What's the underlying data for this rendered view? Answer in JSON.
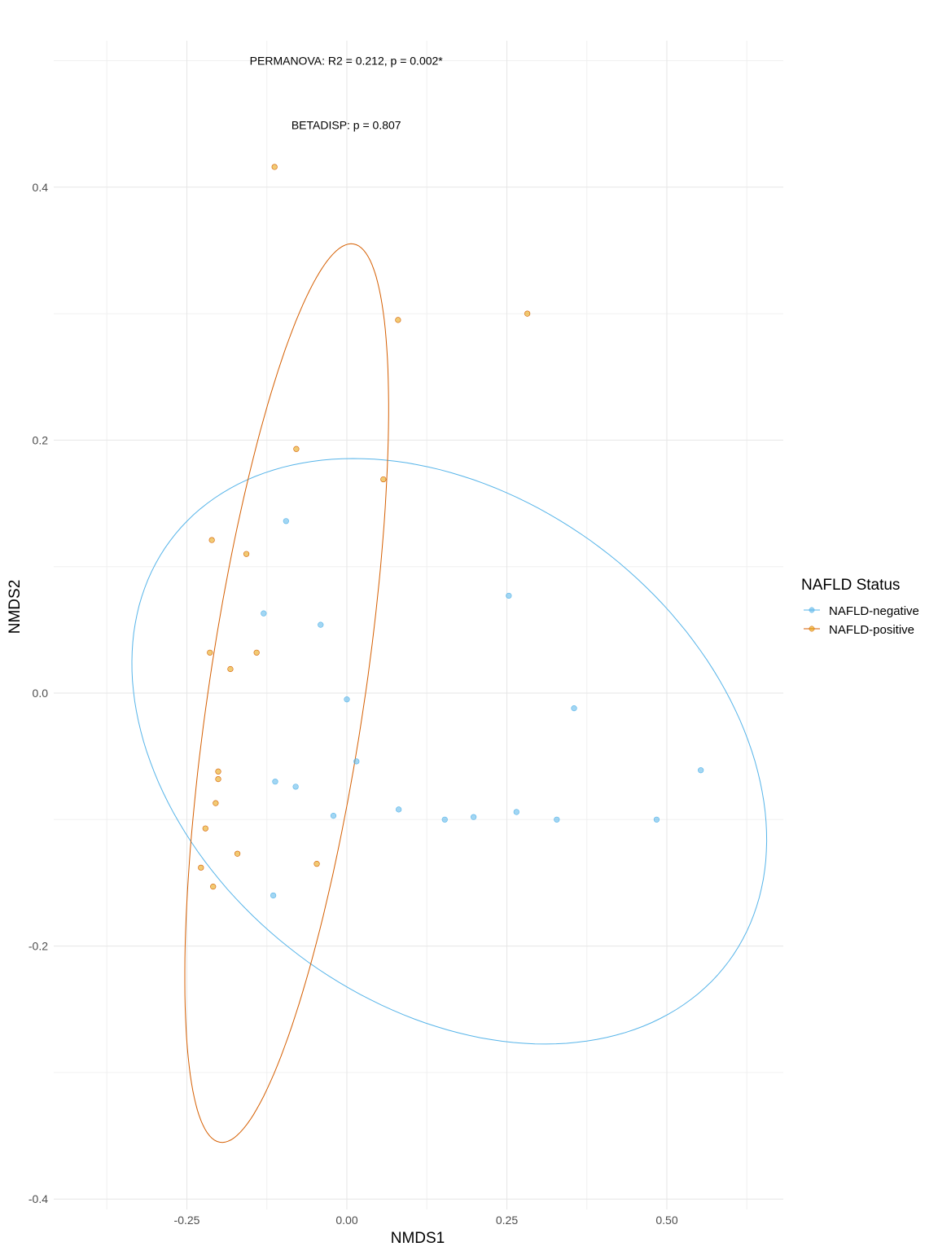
{
  "chart_data": {
    "type": "scatter",
    "xlabel": "NMDS1",
    "ylabel": "NMDS2",
    "xlim": [
      -0.46,
      0.68
    ],
    "ylim": [
      -0.4,
      0.5
    ],
    "x_ticks": [
      -0.25,
      0.0,
      0.25,
      0.5
    ],
    "x_tick_labels": [
      "-0.25",
      "0.00",
      "0.25",
      "0.50"
    ],
    "y_ticks": [
      -0.4,
      -0.2,
      0.0,
      0.2,
      0.4
    ],
    "y_tick_labels": [
      "-0.4",
      "-0.2",
      "0.0",
      "0.2",
      "0.4"
    ],
    "grid": true,
    "legend": {
      "title": "NAFLD Status",
      "placement": "right",
      "entries": [
        "NAFLD-negative",
        "NAFLD-positive"
      ]
    },
    "annotations": [
      {
        "text": "PERMANOVA: R2 = 0.212, p = 0.002*",
        "x": -0.001,
        "y": 0.5
      },
      {
        "text": "BETADISP: p = 0.807",
        "x": -0.001,
        "y": 0.449
      }
    ],
    "series": [
      {
        "name": "NAFLD-negative",
        "color": "#56B4E9",
        "points": [
          [
            -0.095,
            0.136
          ],
          [
            -0.13,
            0.063
          ],
          [
            -0.041,
            0.054
          ],
          [
            0.253,
            0.077
          ],
          [
            0.0,
            -0.005
          ],
          [
            0.355,
            -0.012
          ],
          [
            0.015,
            -0.054
          ],
          [
            -0.112,
            -0.07
          ],
          [
            -0.08,
            -0.074
          ],
          [
            -0.021,
            -0.097
          ],
          [
            0.081,
            -0.092
          ],
          [
            0.153,
            -0.1
          ],
          [
            0.198,
            -0.098
          ],
          [
            0.265,
            -0.094
          ],
          [
            0.328,
            -0.1
          ],
          [
            0.484,
            -0.1
          ],
          [
            0.553,
            -0.061
          ],
          [
            -0.115,
            -0.16
          ]
        ],
        "ellipse": {
          "cx": 0.16,
          "cy": -0.046,
          "a": 0.502,
          "b": 0.218,
          "angle_deg": -9.9
        }
      },
      {
        "name": "NAFLD-positive",
        "color": "#E69F00",
        "points": [
          [
            -0.113,
            0.416
          ],
          [
            0.08,
            0.295
          ],
          [
            0.282,
            0.3
          ],
          [
            -0.079,
            0.193
          ],
          [
            0.057,
            0.169
          ],
          [
            -0.211,
            0.121
          ],
          [
            -0.157,
            0.11
          ],
          [
            -0.214,
            0.032
          ],
          [
            -0.141,
            0.032
          ],
          [
            -0.182,
            0.019
          ],
          [
            -0.201,
            -0.062
          ],
          [
            -0.201,
            -0.068
          ],
          [
            -0.205,
            -0.087
          ],
          [
            -0.221,
            -0.107
          ],
          [
            -0.171,
            -0.127
          ],
          [
            -0.047,
            -0.135
          ],
          [
            -0.228,
            -0.138
          ],
          [
            -0.209,
            -0.153
          ]
        ],
        "ellipse": {
          "cx": -0.094,
          "cy": 0.0,
          "a": 0.371,
          "b": 0.118,
          "angle_deg": 72.3
        }
      }
    ]
  }
}
